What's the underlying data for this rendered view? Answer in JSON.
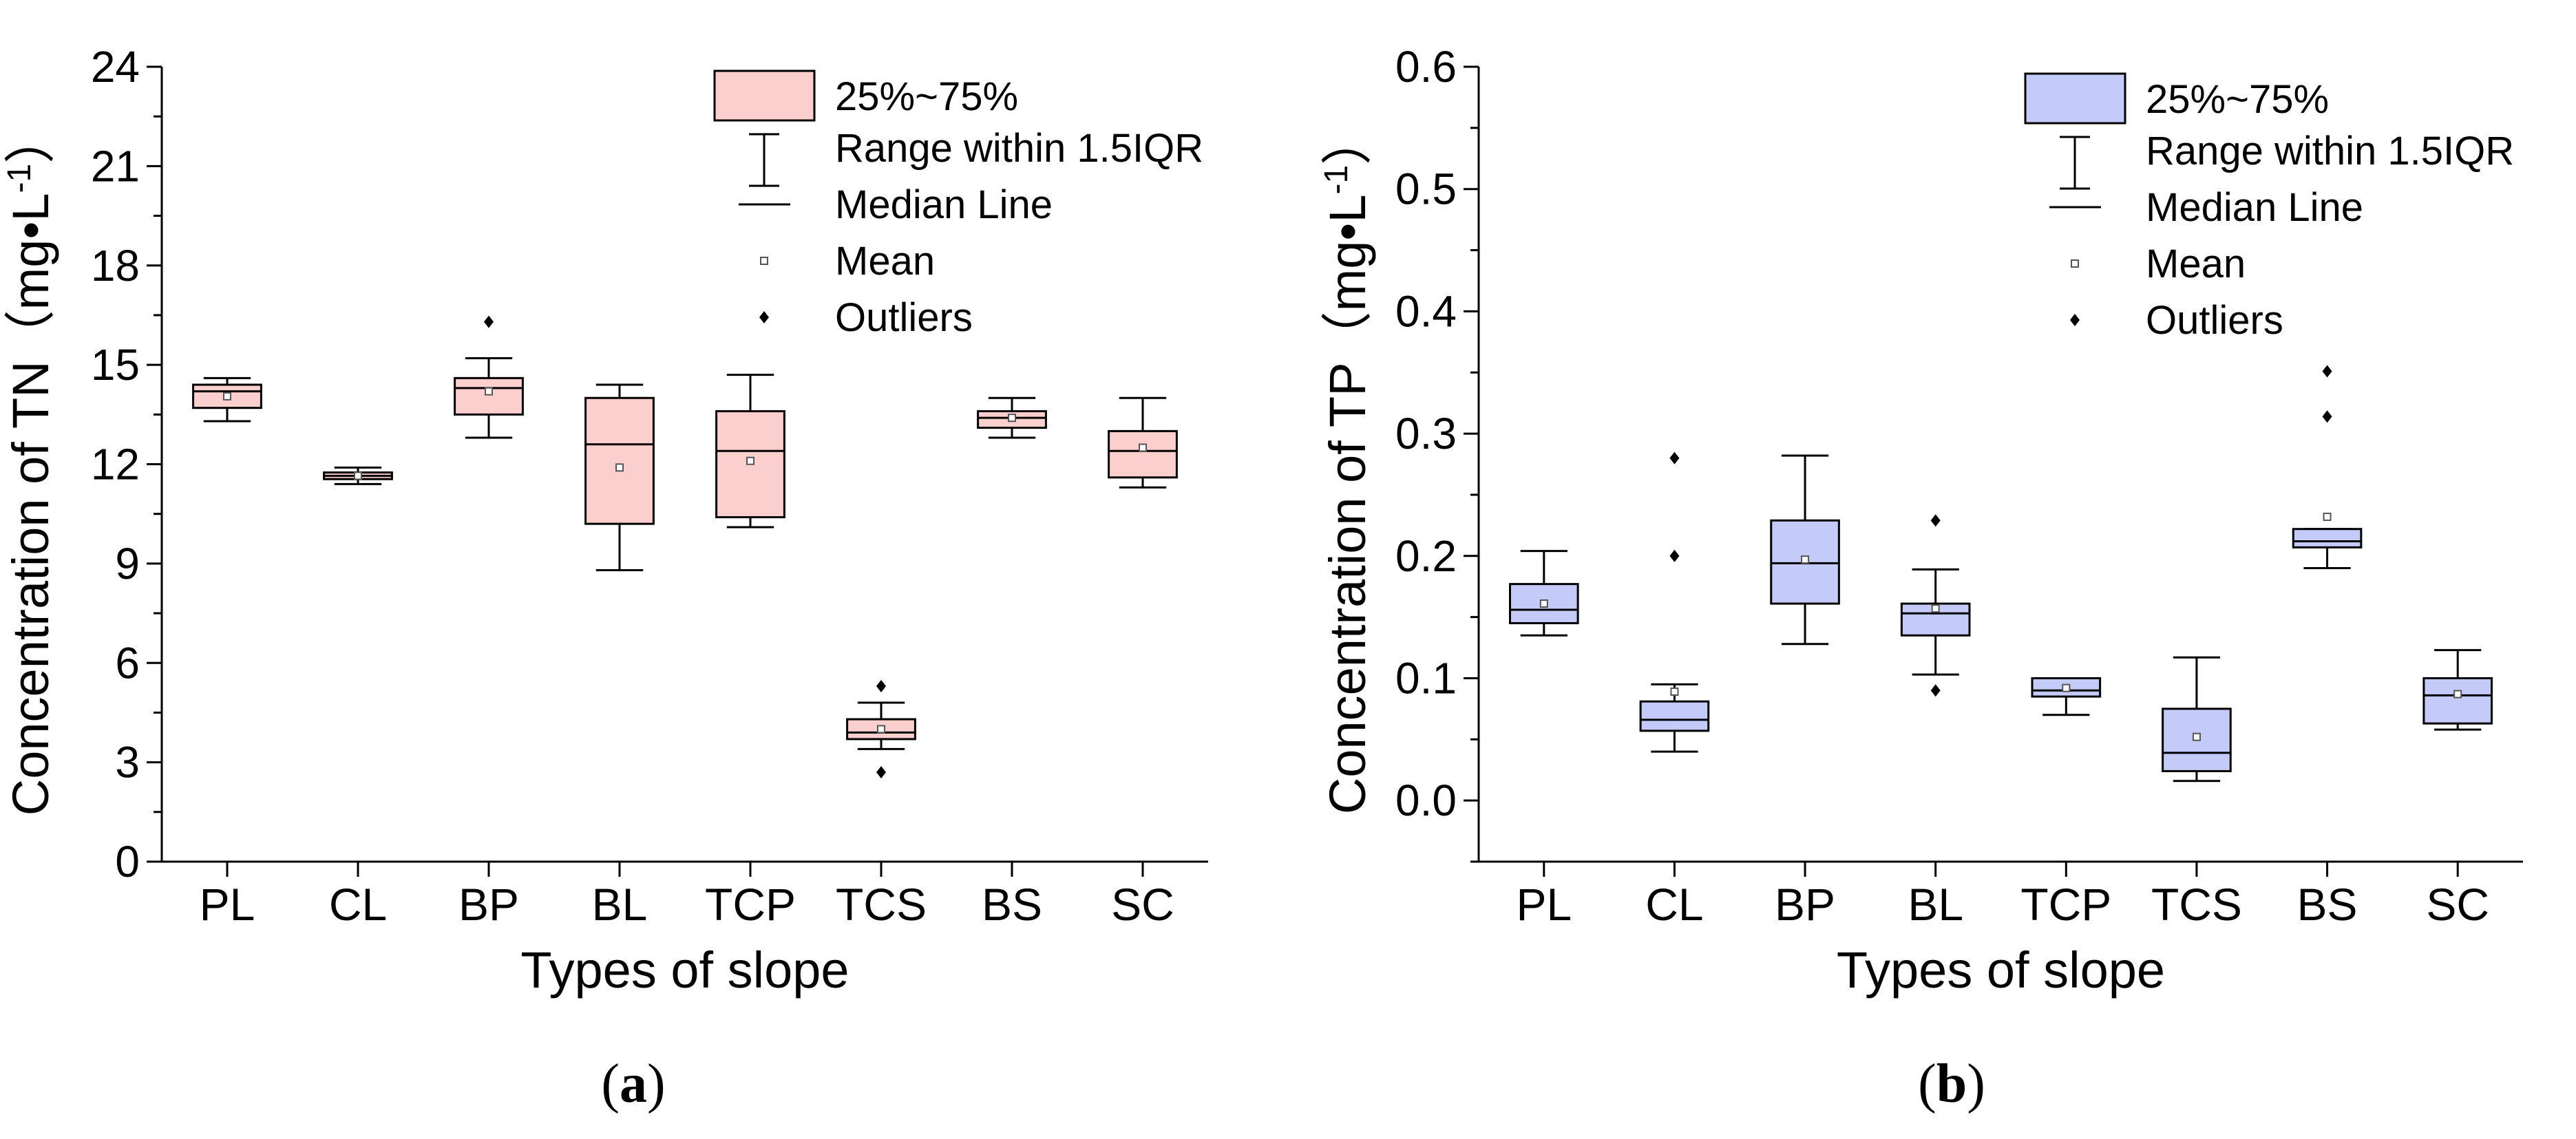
{
  "chart_data": [
    {
      "type": "box",
      "panel": "(a)",
      "panel_letter": "a",
      "title": "",
      "xlabel": "Types of slope",
      "ylabel": "Concentration of TN（mg•L",
      "ylabel_sup": "-1",
      "ylabel_close": "）",
      "ylim": [
        0,
        24
      ],
      "yticks": [
        0,
        3,
        6,
        9,
        12,
        15,
        18,
        21,
        24
      ],
      "ytick_labels": [
        "0",
        "3",
        "6",
        "9",
        "12",
        "15",
        "18",
        "21",
        "24"
      ],
      "box_color": "#fccfcf",
      "categories": [
        "PL",
        "CL",
        "BP",
        "BL",
        "TCP",
        "TCS",
        "BS",
        "SC"
      ],
      "boxes": [
        {
          "name": "PL",
          "whisker_low": 13.3,
          "q1": 13.7,
          "median": 14.2,
          "q3": 14.4,
          "whisker_high": 14.6,
          "mean": 14.05,
          "outliers": []
        },
        {
          "name": "CL",
          "whisker_low": 11.4,
          "q1": 11.55,
          "median": 11.65,
          "q3": 11.75,
          "whisker_high": 11.9,
          "mean": 11.65,
          "outliers": []
        },
        {
          "name": "BP",
          "whisker_low": 12.8,
          "q1": 13.5,
          "median": 14.3,
          "q3": 14.6,
          "whisker_high": 15.2,
          "mean": 14.2,
          "outliers": [
            16.3
          ]
        },
        {
          "name": "BL",
          "whisker_low": 8.8,
          "q1": 10.2,
          "median": 12.6,
          "q3": 14.0,
          "whisker_high": 14.4,
          "mean": 11.9,
          "outliers": []
        },
        {
          "name": "TCP",
          "whisker_low": 10.1,
          "q1": 10.4,
          "median": 12.4,
          "q3": 13.6,
          "whisker_high": 14.7,
          "mean": 12.1,
          "outliers": []
        },
        {
          "name": "TCS",
          "whisker_low": 3.4,
          "q1": 3.7,
          "median": 3.9,
          "q3": 4.3,
          "whisker_high": 4.8,
          "mean": 4.0,
          "outliers": [
            5.3,
            2.7
          ]
        },
        {
          "name": "BS",
          "whisker_low": 12.8,
          "q1": 13.1,
          "median": 13.4,
          "q3": 13.6,
          "whisker_high": 14.0,
          "mean": 13.4,
          "outliers": []
        },
        {
          "name": "SC",
          "whisker_low": 11.3,
          "q1": 11.6,
          "median": 12.4,
          "q3": 13.0,
          "whisker_high": 14.0,
          "mean": 12.5,
          "outliers": []
        }
      ],
      "legend": [
        "25%~75%",
        "Range within 1.5IQR",
        "Median Line",
        "Mean",
        "Outliers"
      ]
    },
    {
      "type": "box",
      "panel": "(b)",
      "panel_letter": "b",
      "title": "",
      "xlabel": "Types of slope",
      "ylabel": "Concentration of TP（mg•L",
      "ylabel_sup": "-1",
      "ylabel_close": "）",
      "ylim": [
        -0.05,
        0.6
      ],
      "yticks": [
        0.0,
        0.1,
        0.2,
        0.3,
        0.4,
        0.5,
        0.6
      ],
      "ytick_labels": [
        "0.0",
        "0.1",
        "0.2",
        "0.3",
        "0.4",
        "0.5",
        "0.6"
      ],
      "box_color": "#c5cbf8",
      "categories": [
        "PL",
        "CL",
        "BP",
        "BL",
        "TCP",
        "TCS",
        "BS",
        "SC"
      ],
      "boxes": [
        {
          "name": "PL",
          "whisker_low": 0.135,
          "q1": 0.145,
          "median": 0.156,
          "q3": 0.177,
          "whisker_high": 0.204,
          "mean": 0.161,
          "outliers": []
        },
        {
          "name": "CL",
          "whisker_low": 0.04,
          "q1": 0.057,
          "median": 0.066,
          "q3": 0.081,
          "whisker_high": 0.095,
          "mean": 0.089,
          "outliers": [
            0.28,
            0.2
          ]
        },
        {
          "name": "BP",
          "whisker_low": 0.128,
          "q1": 0.161,
          "median": 0.194,
          "q3": 0.229,
          "whisker_high": 0.282,
          "mean": 0.197,
          "outliers": []
        },
        {
          "name": "BL",
          "whisker_low": 0.103,
          "q1": 0.135,
          "median": 0.153,
          "q3": 0.161,
          "whisker_high": 0.189,
          "mean": 0.157,
          "outliers": [
            0.229,
            0.09
          ]
        },
        {
          "name": "TCP",
          "whisker_low": 0.07,
          "q1": 0.085,
          "median": 0.09,
          "q3": 0.1,
          "whisker_high": 0.1,
          "mean": 0.092,
          "outliers": []
        },
        {
          "name": "TCS",
          "whisker_low": 0.016,
          "q1": 0.024,
          "median": 0.039,
          "q3": 0.075,
          "whisker_high": 0.117,
          "mean": 0.052,
          "outliers": []
        },
        {
          "name": "BS",
          "whisker_low": 0.19,
          "q1": 0.207,
          "median": 0.212,
          "q3": 0.222,
          "whisker_high": 0.222,
          "mean": 0.232,
          "outliers": [
            0.351,
            0.314
          ]
        },
        {
          "name": "SC",
          "whisker_low": 0.058,
          "q1": 0.063,
          "median": 0.086,
          "q3": 0.1,
          "whisker_high": 0.123,
          "mean": 0.087,
          "outliers": []
        }
      ],
      "legend": [
        "25%~75%",
        "Range within 1.5IQR",
        "Median Line",
        "Mean",
        "Outliers"
      ]
    }
  ]
}
